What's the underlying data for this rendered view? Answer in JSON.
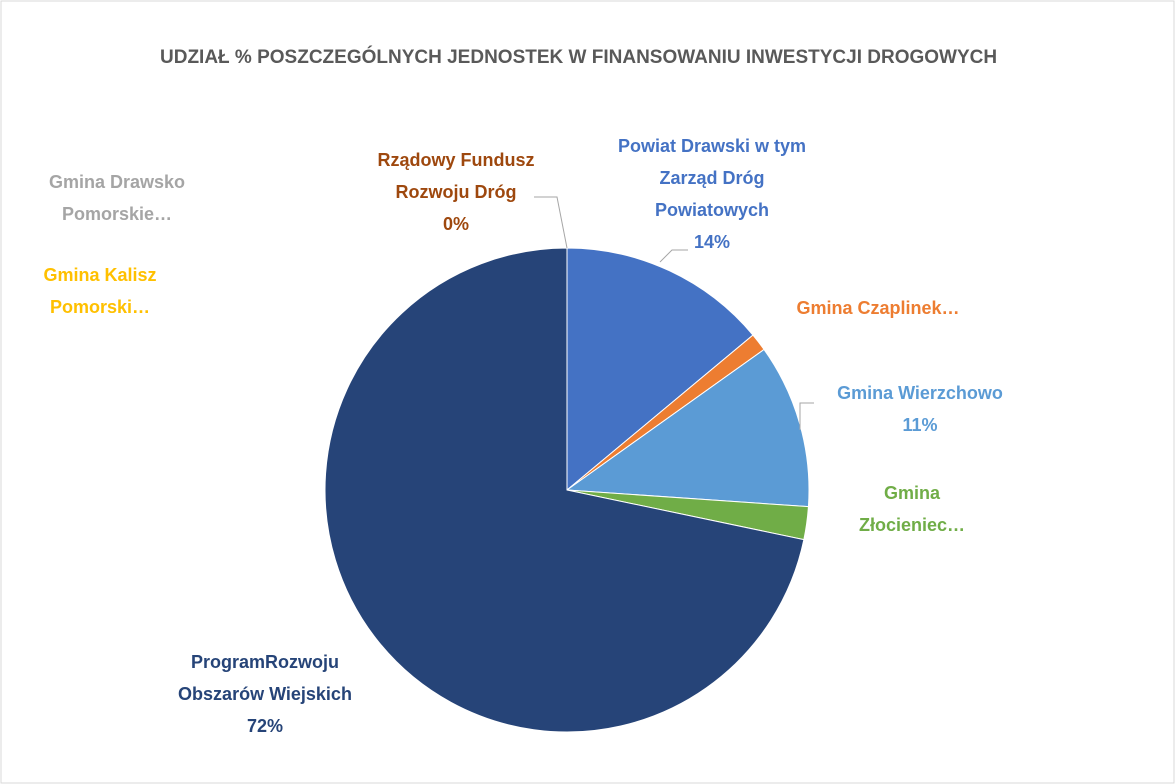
{
  "chart_data": {
    "type": "pie",
    "title": "UDZIAŁ % POSZCZEGÓLNYCH JEDNOSTEK W FINANSOWANIU INWESTYCJI DROGOWYCH",
    "categories": [
      "Powiat Drawski w tym Zarząd Dróg Powiatowych",
      "Gmina Czaplinek…",
      "Gmina Wierzchowo",
      "Gmina Złocieniec…",
      "ProgramRozwoju Obszarów Wiejskich",
      "Gmina Kalisz Pomorski…",
      "Gmina Drawsko Pomorskie…",
      "Rządowy Fundusz Rozwoju Dróg"
    ],
    "values": [
      14,
      1.2,
      11,
      2.2,
      72,
      0,
      0,
      0
    ],
    "value_labels": [
      "14%",
      null,
      "11%",
      null,
      "72%",
      null,
      null,
      "0%"
    ],
    "colors": [
      "#4472c4",
      "#ed7d31",
      "#5b9bd5",
      "#70ad47",
      "#264478",
      "#ffc000",
      "#a5a5a5",
      "#9e480e"
    ]
  }
}
